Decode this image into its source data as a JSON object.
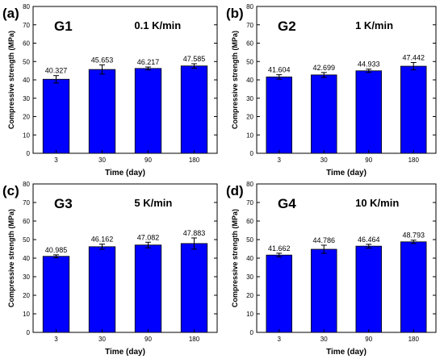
{
  "chart_data": [
    {
      "type": "bar",
      "panel_label": "(a)",
      "group_label": "G1",
      "rate_label": "0.1 K/min",
      "categories": [
        "3",
        "30",
        "90",
        "180"
      ],
      "values": [
        40.327,
        45.653,
        46.217,
        47.585
      ],
      "value_labels": [
        "40.327",
        "45.653",
        "46.217",
        "47.585"
      ],
      "errors": [
        2.0,
        2.5,
        0.8,
        1.2
      ],
      "xlabel": "Time (day)",
      "ylabel": "Compressive strength (MPa)",
      "ylim": [
        0,
        80
      ],
      "yticks": [
        "0",
        "10",
        "20",
        "30",
        "40",
        "50",
        "60",
        "70",
        "80"
      ],
      "bar_color": "#0000ff",
      "grid": false
    },
    {
      "type": "bar",
      "panel_label": "(b)",
      "group_label": "G2",
      "rate_label": "1 K/min",
      "categories": [
        "3",
        "30",
        "90",
        "180"
      ],
      "values": [
        41.604,
        42.699,
        44.933,
        47.442
      ],
      "value_labels": [
        "41.604",
        "42.699",
        "44.933",
        "47.442"
      ],
      "errors": [
        1.2,
        1.3,
        0.9,
        2.0
      ],
      "xlabel": "Time (day)",
      "ylabel": "Compressive strength (MPa)",
      "ylim": [
        0,
        80
      ],
      "yticks": [
        "0",
        "10",
        "20",
        "30",
        "40",
        "50",
        "60",
        "70",
        "80"
      ],
      "bar_color": "#0000ff",
      "grid": false
    },
    {
      "type": "bar",
      "panel_label": "(c)",
      "group_label": "G3",
      "rate_label": "5 K/min",
      "categories": [
        "3",
        "30",
        "90",
        "180"
      ],
      "values": [
        40.985,
        46.162,
        47.082,
        47.883
      ],
      "value_labels": [
        "40.985",
        "46.162",
        "47.082",
        "47.883"
      ],
      "errors": [
        0.8,
        1.4,
        1.5,
        3.0
      ],
      "xlabel": "Time (day)",
      "ylabel": "Compressive strength (MPa)",
      "ylim": [
        0,
        80
      ],
      "yticks": [
        "0",
        "10",
        "20",
        "30",
        "40",
        "50",
        "60",
        "70",
        "80"
      ],
      "bar_color": "#0000ff",
      "grid": false
    },
    {
      "type": "bar",
      "panel_label": "(d)",
      "group_label": "G4",
      "rate_label": "10 K/min",
      "categories": [
        "3",
        "30",
        "90",
        "180"
      ],
      "values": [
        41.662,
        44.786,
        46.464,
        48.793
      ],
      "value_labels": [
        "41.662",
        "44.786",
        "46.464",
        "48.793"
      ],
      "errors": [
        1.0,
        2.2,
        1.0,
        0.9
      ],
      "xlabel": "Time (day)",
      "ylabel": "Compressive strength (MPa)",
      "ylim": [
        0,
        80
      ],
      "yticks": [
        "0",
        "10",
        "20",
        "30",
        "40",
        "50",
        "60",
        "70",
        "80"
      ],
      "bar_color": "#0000ff",
      "grid": false
    }
  ]
}
